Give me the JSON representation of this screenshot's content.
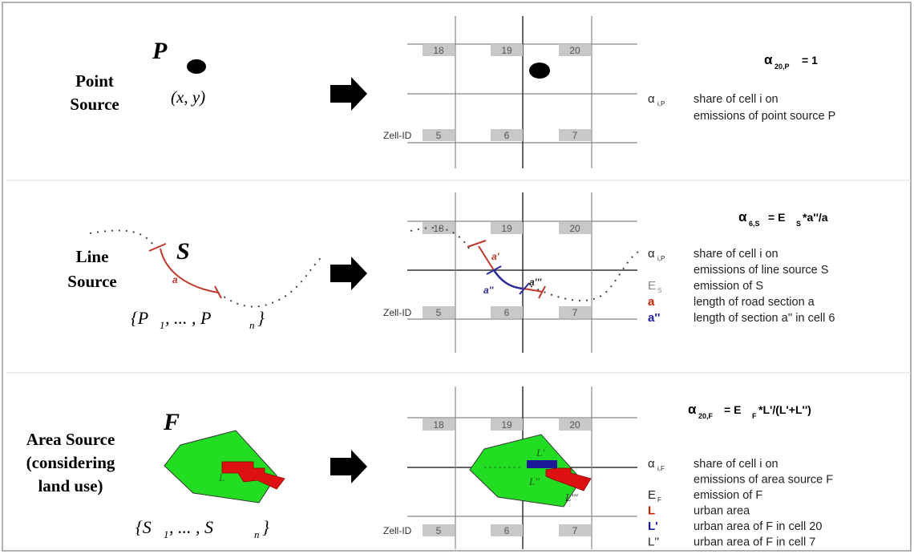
{
  "point": {
    "title_line1": "Point",
    "title_line2": "Source",
    "symbol": "P",
    "coords": "(x, y)",
    "cells_top": [
      "18",
      "19",
      "20"
    ],
    "cells_bottom": [
      "5",
      "6",
      "7"
    ],
    "zell_id": "Zell-ID",
    "formula_alpha": "α",
    "formula_sub": "20,P",
    "formula_rest": "= 1",
    "legend": [
      {
        "sym": "α",
        "sub": "i,P",
        "color": "#222222",
        "lines": [
          "share of cell i on",
          "emissions of point source P"
        ]
      }
    ]
  },
  "line": {
    "title_line1": "Line",
    "title_line2": "Source",
    "symbol": "S",
    "segment_label": "a",
    "set_open": "{P",
    "set_sub1": "1",
    "set_mid": ", ... , P",
    "set_subn": "n",
    "set_close": "}",
    "cells_top": [
      "18",
      "19",
      "20"
    ],
    "cells_bottom": [
      "5",
      "6",
      "7"
    ],
    "zell_id": "Zell-ID",
    "piece_labels": [
      "a'",
      "a''",
      "a'''"
    ],
    "formula_alpha": "α",
    "formula_sub": "6,S",
    "formula_eq": "= E",
    "formula_sub2": "S",
    "formula_rest": "*a''/a",
    "legend": [
      {
        "sym": "α",
        "sub": "i,P",
        "color": "#222222",
        "lines": [
          "share of cell i on",
          "emissions of line source S"
        ]
      },
      {
        "sym": "E",
        "sub": "S",
        "color": "#888888",
        "lines": [
          "emission of S"
        ]
      },
      {
        "sym": "a",
        "sub": "",
        "color": "#cc2200",
        "lines": [
          "length of road section a"
        ]
      },
      {
        "sym": "a''",
        "sub": "",
        "color": "#1a1aa0",
        "lines": [
          "length of section a'' in cell 6"
        ]
      }
    ]
  },
  "area": {
    "title_line1": "Area Source",
    "title_line2": "(considering",
    "title_line3": "land use)",
    "symbol": "F",
    "poly_label": "L",
    "set_open": "{S",
    "set_sub1": "1",
    "set_mid": ", ... , S",
    "set_subn": "n",
    "set_close": "}",
    "cells_top": [
      "18",
      "19",
      "20"
    ],
    "cells_bottom": [
      "5",
      "6",
      "7"
    ],
    "zell_id": "Zell-ID",
    "piece_labels": [
      "L'",
      "L''",
      "L'''"
    ],
    "formula_alpha": "α",
    "formula_sub": "20,F",
    "formula_eq": "= E",
    "formula_sub2": "F",
    "formula_rest": "*L'/(L'+L'')",
    "legend": [
      {
        "sym": "α",
        "sub": "i,F",
        "color": "#222222",
        "lines": [
          "share of cell i on",
          "emissions of area source F"
        ]
      },
      {
        "sym": "E",
        "sub": "F",
        "color": "#222222",
        "lines": [
          "emission of F"
        ]
      },
      {
        "sym": "L",
        "sub": "",
        "color": "#cc2200",
        "lines": [
          "urban area"
        ]
      },
      {
        "sym": "L'",
        "sub": "",
        "color": "#1a1aa0",
        "lines": [
          "urban area of F in cell 20"
        ]
      },
      {
        "sym": "L''",
        "sub": "",
        "color": "#222222",
        "lines": [
          "urban area of F in cell 7"
        ]
      }
    ]
  },
  "colors": {
    "road": "#c0392b",
    "road_cell": "#2a2a9a",
    "area_fill": "#22dd22",
    "urban": "#dd1111",
    "urban_cell": "#1a1a9a",
    "cell_box": "#c8c8c8"
  }
}
